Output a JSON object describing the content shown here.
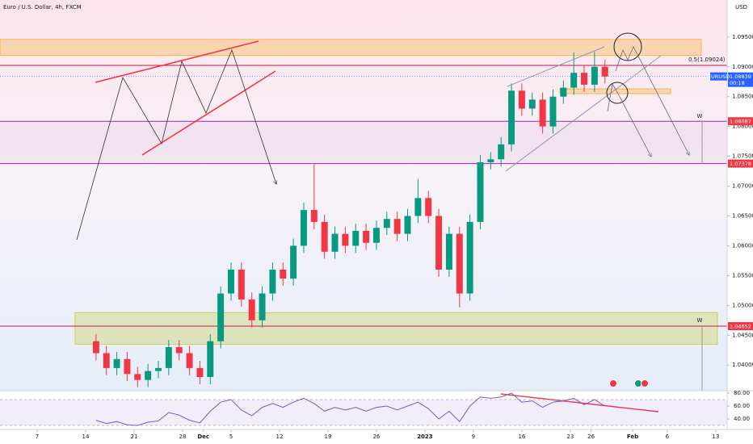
{
  "chart_data": {
    "type": "candlestick",
    "title": "Euro / U.S. Dollar, 4h, FXCM",
    "currency": "USD",
    "symbol": "EURUSD",
    "countdown": "00:18",
    "up_color": "#089981",
    "down_color": "#f23645",
    "x": [
      8.5,
      10,
      11.5,
      13,
      14.5,
      16,
      17.5,
      19,
      20.5,
      22,
      23.5,
      25,
      26.5,
      28,
      29.5,
      31,
      32.5,
      34,
      35.5,
      37,
      38.5,
      40,
      41.5,
      43,
      44.5,
      46,
      47.5,
      49,
      50.5,
      52,
      53.5,
      55,
      56.5,
      58,
      59.5,
      61,
      62.5,
      64,
      65.5,
      67,
      68.5,
      70,
      71.5,
      73,
      74.5,
      76,
      77.5,
      79,
      80.5,
      82
    ],
    "open": [
      1.044,
      1.042,
      1.0395,
      1.041,
      1.0385,
      1.0375,
      1.039,
      1.0395,
      1.043,
      1.042,
      1.0395,
      1.038,
      1.044,
      1.052,
      1.056,
      1.051,
      1.0475,
      1.052,
      1.056,
      1.0545,
      1.06,
      1.066,
      1.064,
      1.059,
      1.062,
      1.06,
      1.0625,
      1.0605,
      1.063,
      1.0645,
      1.062,
      1.065,
      1.068,
      1.065,
      1.056,
      1.062,
      1.052,
      1.064,
      1.074,
      1.0745,
      1.077,
      1.086,
      1.083,
      1.0845,
      1.08,
      1.085,
      1.0865,
      1.089,
      1.087,
      1.09
    ],
    "high": [
      1.0452,
      1.0432,
      1.0422,
      1.0422,
      1.0397,
      1.0402,
      1.0407,
      1.0442,
      1.0442,
      1.0432,
      1.0407,
      1.0452,
      1.0532,
      1.0572,
      1.0572,
      1.0522,
      1.0532,
      1.0572,
      1.0572,
      1.0612,
      1.0672,
      1.0737,
      1.0652,
      1.0632,
      1.0632,
      1.0637,
      1.0637,
      1.0642,
      1.0657,
      1.0657,
      1.0662,
      1.0712,
      1.0692,
      1.0662,
      1.0632,
      1.0632,
      1.0652,
      1.0752,
      1.0757,
      1.0782,
      1.0872,
      1.0872,
      1.0857,
      1.0857,
      1.0862,
      1.0877,
      1.0924,
      1.0902,
      1.0925,
      1.0912
    ],
    "low": [
      1.0408,
      1.0383,
      1.0383,
      1.0373,
      1.0363,
      1.0363,
      1.0378,
      1.0383,
      1.0408,
      1.0383,
      1.0368,
      1.0368,
      1.0428,
      1.0508,
      1.0498,
      1.0463,
      1.0463,
      1.0508,
      1.0533,
      1.0533,
      1.0588,
      1.0628,
      1.0578,
      1.0578,
      1.0588,
      1.0588,
      1.0593,
      1.0593,
      1.0618,
      1.0608,
      1.0608,
      1.0638,
      1.0638,
      1.0548,
      1.0548,
      1.0497,
      1.0508,
      1.0628,
      1.0728,
      1.0733,
      1.0758,
      1.0818,
      1.0818,
      1.0788,
      1.0788,
      1.0838,
      1.0853,
      1.0858,
      1.0858,
      1.0872
    ],
    "close": [
      1.042,
      1.0395,
      1.041,
      1.0385,
      1.0375,
      1.039,
      1.0395,
      1.043,
      1.042,
      1.0395,
      1.038,
      1.044,
      1.052,
      1.056,
      1.051,
      1.0475,
      1.052,
      1.056,
      1.0545,
      1.06,
      1.066,
      1.064,
      1.059,
      1.062,
      1.06,
      1.0625,
      1.0605,
      1.063,
      1.0645,
      1.062,
      1.065,
      1.068,
      1.065,
      1.056,
      1.062,
      1.052,
      1.064,
      1.074,
      1.0745,
      1.077,
      1.086,
      1.083,
      1.0845,
      1.08,
      1.085,
      1.0865,
      1.089,
      1.087,
      1.09,
      1.08839
    ],
    "last_price": 1.08839,
    "last_color": "#2962ff",
    "xlim": [
      -5.37,
      99.65
    ],
    "ylim": [
      1.0357,
      1.1012
    ],
    "xticks": [
      {
        "value": 0,
        "label": "7"
      },
      {
        "value": 7,
        "label": "14"
      },
      {
        "value": 14,
        "label": "21"
      },
      {
        "value": 21,
        "label": "28"
      },
      {
        "value": 24,
        "label": "Dec"
      },
      {
        "value": 28,
        "label": "5"
      },
      {
        "value": 35,
        "label": "12"
      },
      {
        "value": 42,
        "label": "19"
      },
      {
        "value": 49,
        "label": "26"
      },
      {
        "value": 56,
        "label": "2023"
      },
      {
        "value": 63,
        "label": "9"
      },
      {
        "value": 70,
        "label": "16"
      },
      {
        "value": 77,
        "label": "23"
      },
      {
        "value": 80,
        "label": "26"
      },
      {
        "value": 86,
        "label": "Feb"
      },
      {
        "value": 91,
        "label": "6"
      },
      {
        "value": 98,
        "label": "13"
      }
    ],
    "yticks": [
      {
        "value": 1.04,
        "label": "1.04000"
      },
      {
        "value": 1.045,
        "label": "1.04500"
      },
      {
        "value": 1.05,
        "label": "1.05000"
      },
      {
        "value": 1.055,
        "label": "1.05500"
      },
      {
        "value": 1.06,
        "label": "1.06000"
      },
      {
        "value": 1.065,
        "label": "1.06500"
      },
      {
        "value": 1.07,
        "label": "1.07000"
      },
      {
        "value": 1.075,
        "label": "1.07500"
      },
      {
        "value": 1.08,
        "label": "1.08000"
      },
      {
        "value": 1.085,
        "label": "1.08500"
      },
      {
        "value": 1.09,
        "label": "1.09000"
      },
      {
        "value": 1.095,
        "label": "1.09500"
      }
    ],
    "levels": [
      {
        "value": 1.09024,
        "label": "0.5(1.09024)",
        "color": "#c2185b"
      },
      {
        "value": 1.08087,
        "color": "#9c27b0"
      },
      {
        "value": 1.07378,
        "color": "#9c27b0"
      },
      {
        "value": 1.04652,
        "color": "#c2185b"
      }
    ],
    "tag_color": "#f23645",
    "zones": [
      {
        "from": 1.0946,
        "to": 1.0919,
        "color": "#f9a825"
      },
      {
        "from": 1.0863,
        "to": 1.0855,
        "color": "#f9a825"
      },
      {
        "from": 1.0488,
        "to": 1.0435,
        "color": "#c0ca33"
      }
    ],
    "annotations": [
      {
        "text": "W",
        "price": 1.0817
      },
      {
        "text": "W",
        "price": 1.0475
      }
    ],
    "rsi": {
      "values": [
        38,
        33,
        36,
        31,
        30,
        35,
        37,
        50,
        46,
        38,
        34,
        52,
        66,
        70,
        54,
        45,
        58,
        64,
        58,
        66,
        72,
        64,
        52,
        58,
        54,
        58,
        52,
        58,
        60,
        54,
        60,
        66,
        56,
        40,
        52,
        36,
        60,
        74,
        72,
        74,
        80,
        66,
        68,
        58,
        66,
        68,
        72,
        62,
        70,
        60
      ],
      "color": "#7e57c2",
      "ylim": [
        23.75,
        83.75
      ],
      "yticks": [
        {
          "value": 80,
          "label": "80.00"
        },
        {
          "value": 60,
          "label": "60.00"
        },
        {
          "value": 40,
          "label": "40.00"
        }
      ],
      "bands": [
        70,
        30
      ]
    }
  }
}
